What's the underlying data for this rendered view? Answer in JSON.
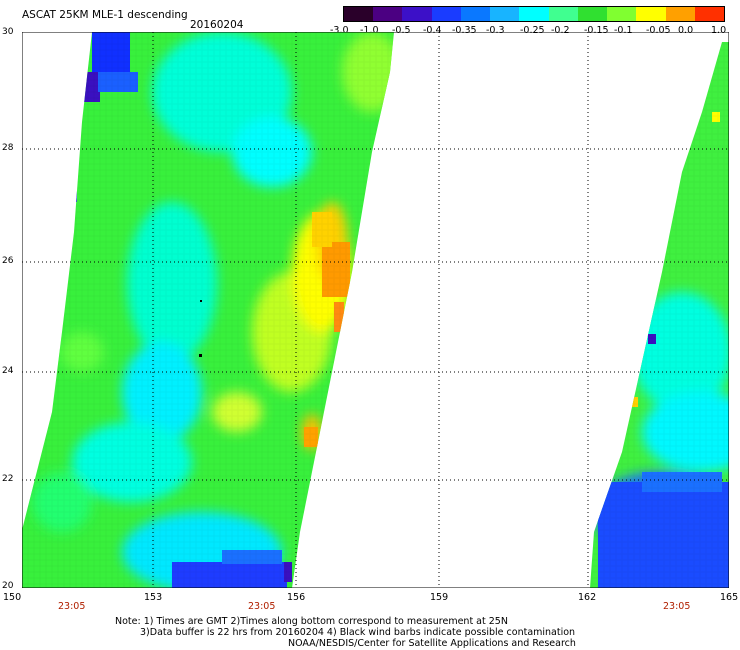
{
  "header": {
    "title": "ASCAT 25KM MLE-1 descending",
    "date": "20160204"
  },
  "colorbar": {
    "labels": [
      "-3.0",
      "-1.0",
      "-0.5",
      "-0.4",
      "-0.35",
      "-0.3",
      "-0.25",
      "-0.2",
      "-0.15",
      "-0.1",
      "-0.05",
      "0.0",
      "1.0"
    ],
    "colors": [
      "#2a002a",
      "#4b0082",
      "#3c10c8",
      "#1a3cff",
      "#0a78ff",
      "#18b4ff",
      "#00ffff",
      "#40ff90",
      "#30e030",
      "#80ff30",
      "#ffff00",
      "#ffa000",
      "#ff3000"
    ]
  },
  "axes": {
    "y_ticks": [
      "30",
      "28",
      "26",
      "24",
      "22",
      "20"
    ],
    "x_ticks": [
      "150",
      "153",
      "156",
      "159",
      "162",
      "165"
    ]
  },
  "time_labels": [
    "23:05",
    "23:05",
    "23:05"
  ],
  "notes": [
    "Note: 1) Times are GMT 2)Times along bottom correspond to measurement at 25N",
    "3)Data buffer is 22 hrs from 20160204 4) Black wind barbs indicate possible contamination",
    "NOAA/NESDIS/Center for Satellite Applications and Research"
  ]
}
